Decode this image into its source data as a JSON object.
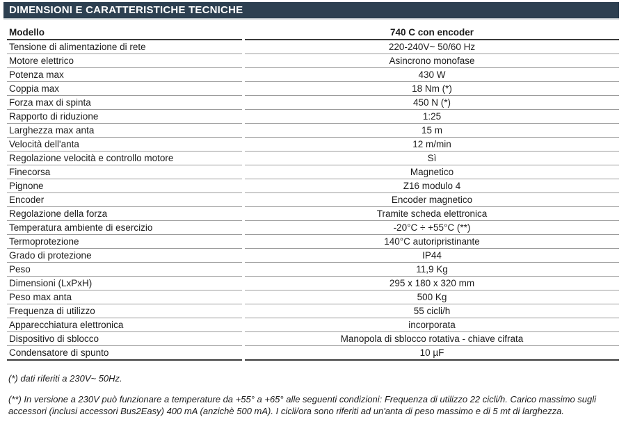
{
  "page": {
    "title": "DIMENSIONI E CARATTERISTICHE TECNICHE"
  },
  "colors": {
    "title_bar_background": "#2d4051",
    "title_text": "#ffffff",
    "strong_rule": "#3b3b3b",
    "row_separator": "#9b9b9b"
  },
  "table": {
    "header": {
      "label": "Modello",
      "value": "740 C con encoder"
    },
    "rows": [
      {
        "label": "Tensione di alimentazione di rete",
        "value": "220-240V~ 50/60 Hz"
      },
      {
        "label": "Motore elettrico",
        "value": "Asincrono monofase"
      },
      {
        "label": "Potenza max",
        "value": "430 W"
      },
      {
        "label": "Coppia max",
        "value": "18 Nm (*)"
      },
      {
        "label": "Forza max di spinta",
        "value": "450 N (*)"
      },
      {
        "label": "Rapporto di riduzione",
        "value": "1:25"
      },
      {
        "label": "Larghezza max anta",
        "value": "15 m"
      },
      {
        "label": "Velocità dell'anta",
        "value": "12 m/min"
      },
      {
        "label": "Regolazione velocità e controllo motore",
        "value": "Sì"
      },
      {
        "label": "Finecorsa",
        "value": "Magnetico"
      },
      {
        "label": "Pignone",
        "value": "Z16 modulo 4"
      },
      {
        "label": "Encoder",
        "value": "Encoder magnetico"
      },
      {
        "label": "Regolazione della forza",
        "value": "Tramite scheda elettronica"
      },
      {
        "label": "Temperatura ambiente di esercizio",
        "value": "-20°C ÷ +55°C (**)"
      },
      {
        "label": "Termoprotezione",
        "value": "140°C autoripristinante"
      },
      {
        "label": "Grado di protezione",
        "value": "IP44"
      },
      {
        "label": "Peso",
        "value": "11,9 Kg"
      },
      {
        "label": "Dimensioni (LxPxH)",
        "value": "295 x 180 x 320 mm"
      },
      {
        "label": "Peso max anta",
        "value": "500 Kg"
      },
      {
        "label": "Frequenza di utilizzo",
        "value": "55 cicli/h"
      },
      {
        "label": "Apparecchiatura elettronica",
        "value": "incorporata"
      },
      {
        "label": "Dispositivo di sblocco",
        "value": "Manopola di sblocco rotativa - chiave cifrata"
      },
      {
        "label": "Condensatore di spunto",
        "value": "10 µF"
      }
    ]
  },
  "footnotes": {
    "note1": "(*) dati riferiti a 230V~ 50Hz.",
    "note2": "(**) In versione a 230V può funzionare a temperature da +55° a +65° alle seguenti condizioni:  Frequenza di utilizzo 22 cicli/h. Carico massimo sugli accessori (inclusi accessori Bus2Easy) 400 mA (anzichè 500 mA). I cicli/ora sono riferiti ad un'anta di peso massimo e di 5 mt di larghezza."
  }
}
